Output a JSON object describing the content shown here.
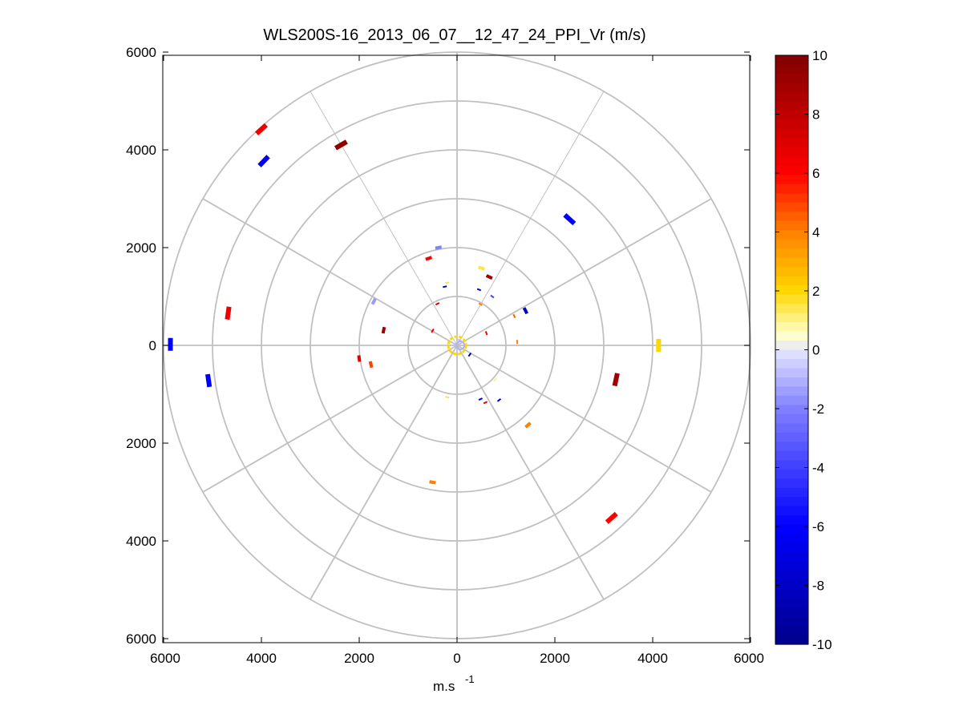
{
  "chart_data": {
    "type": "scatter",
    "title": "WLS200S-16_2013_06_07__12_47_24_PPI_Vr (m/s)",
    "xlabel": "m.s",
    "xlabel_superscript": "-1",
    "ylabel": "",
    "xlim": [
      -6000,
      6000
    ],
    "ylim": [
      -6000,
      6000
    ],
    "x_tick_labels": [
      "6000",
      "4000",
      "2000",
      "0",
      "2000",
      "4000",
      "6000"
    ],
    "y_tick_labels": [
      "6000",
      "4000",
      "2000",
      "0",
      "2000",
      "4000",
      "6000"
    ],
    "grid": "polar",
    "range_rings": [
      1000,
      2000,
      3000,
      4000,
      5000,
      6000
    ],
    "radial_spokes_deg": [
      0,
      30,
      60,
      90,
      120,
      150,
      180,
      210,
      240,
      270,
      300,
      330
    ],
    "colorbar": {
      "min": -10,
      "max": 10,
      "tick_labels": [
        "10",
        "8",
        "6",
        "4",
        "2",
        "0",
        "-2",
        "-4",
        "-6",
        "-8",
        "-10"
      ],
      "colors": {
        "-10": "#00008c",
        "-6": "#0000ff",
        "-2": "#8080ff",
        "0": "#e6e6ff",
        "0.5": "#ffffcc",
        "2": "#ffd700",
        "4": "#ff8000",
        "6": "#ff0000",
        "10": "#800000"
      }
    },
    "points": [
      {
        "x": -4000,
        "y": 4420,
        "v": 6.5
      },
      {
        "x": -3950,
        "y": 3770,
        "v": -6.5
      },
      {
        "x": -2370,
        "y": 4100,
        "v": 9.5
      },
      {
        "x": 2300,
        "y": 2580,
        "v": -6
      },
      {
        "x": -4680,
        "y": 660,
        "v": 6.5
      },
      {
        "x": -5860,
        "y": 20,
        "v": -6.5
      },
      {
        "x": -5080,
        "y": -720,
        "v": -6
      },
      {
        "x": 4120,
        "y": 0,
        "v": 2
      },
      {
        "x": 3250,
        "y": -700,
        "v": 9
      },
      {
        "x": 3160,
        "y": -3530,
        "v": 6
      },
      {
        "x": -500,
        "y": -2800,
        "v": 4
      },
      {
        "x": 1450,
        "y": -1630,
        "v": 4
      },
      {
        "x": -380,
        "y": 2000,
        "v": -2
      },
      {
        "x": -580,
        "y": 1780,
        "v": 6
      },
      {
        "x": 500,
        "y": 1580,
        "v": 1.5
      },
      {
        "x": 660,
        "y": 1400,
        "v": 9
      },
      {
        "x": -200,
        "y": 1280,
        "v": 1.5
      },
      {
        "x": 450,
        "y": 1140,
        "v": -7
      },
      {
        "x": 720,
        "y": 1000,
        "v": -4
      },
      {
        "x": -250,
        "y": 1200,
        "v": -8
      },
      {
        "x": -400,
        "y": 850,
        "v": 7
      },
      {
        "x": -1700,
        "y": 900,
        "v": -1.5
      },
      {
        "x": 1400,
        "y": 710,
        "v": -8
      },
      {
        "x": 1170,
        "y": 600,
        "v": 4.5
      },
      {
        "x": 480,
        "y": 840,
        "v": 4
      },
      {
        "x": -1500,
        "y": 310,
        "v": 9
      },
      {
        "x": -500,
        "y": 300,
        "v": 7
      },
      {
        "x": 600,
        "y": 250,
        "v": 6
      },
      {
        "x": 1230,
        "y": 70,
        "v": 4
      },
      {
        "x": -2000,
        "y": -270,
        "v": 7
      },
      {
        "x": -1760,
        "y": -390,
        "v": 5
      },
      {
        "x": 260,
        "y": -190,
        "v": -9
      },
      {
        "x": 780,
        "y": -700,
        "v": 1
      },
      {
        "x": 480,
        "y": -1100,
        "v": -6
      },
      {
        "x": 580,
        "y": -1170,
        "v": 7
      },
      {
        "x": 860,
        "y": -1120,
        "v": -7
      },
      {
        "x": -200,
        "y": -1060,
        "v": 1.5
      },
      {
        "x": 60,
        "y": 100,
        "v": -1
      }
    ]
  }
}
